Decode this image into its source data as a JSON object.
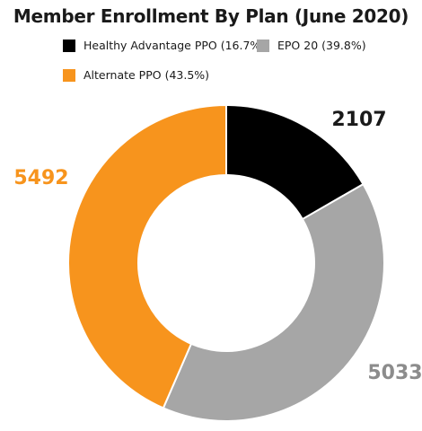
{
  "chart_data": {
    "type": "pie",
    "variant": "donut",
    "title": "Member Enrollment By Plan (June 2020)",
    "slices": [
      {
        "label": "Healthy Advantage PPO (16.7%)",
        "value": 2107,
        "value_label": "2107",
        "percent": 16.7,
        "color": "#000000",
        "label_color": "#1a1a1a"
      },
      {
        "label": "EPO 20 (39.8%)",
        "value": 5033,
        "value_label": "5033",
        "percent": 39.8,
        "color": "#a6a6a6",
        "label_color": "#8c8c8c"
      },
      {
        "label": "Alternate PPO (43.5%)",
        "value": 5492,
        "value_label": "5492",
        "percent": 43.5,
        "color": "#f7941d",
        "label_color": "#f7941d"
      }
    ],
    "start_angle": "12 o'clock",
    "direction": "clockwise",
    "legend_position": "top"
  }
}
